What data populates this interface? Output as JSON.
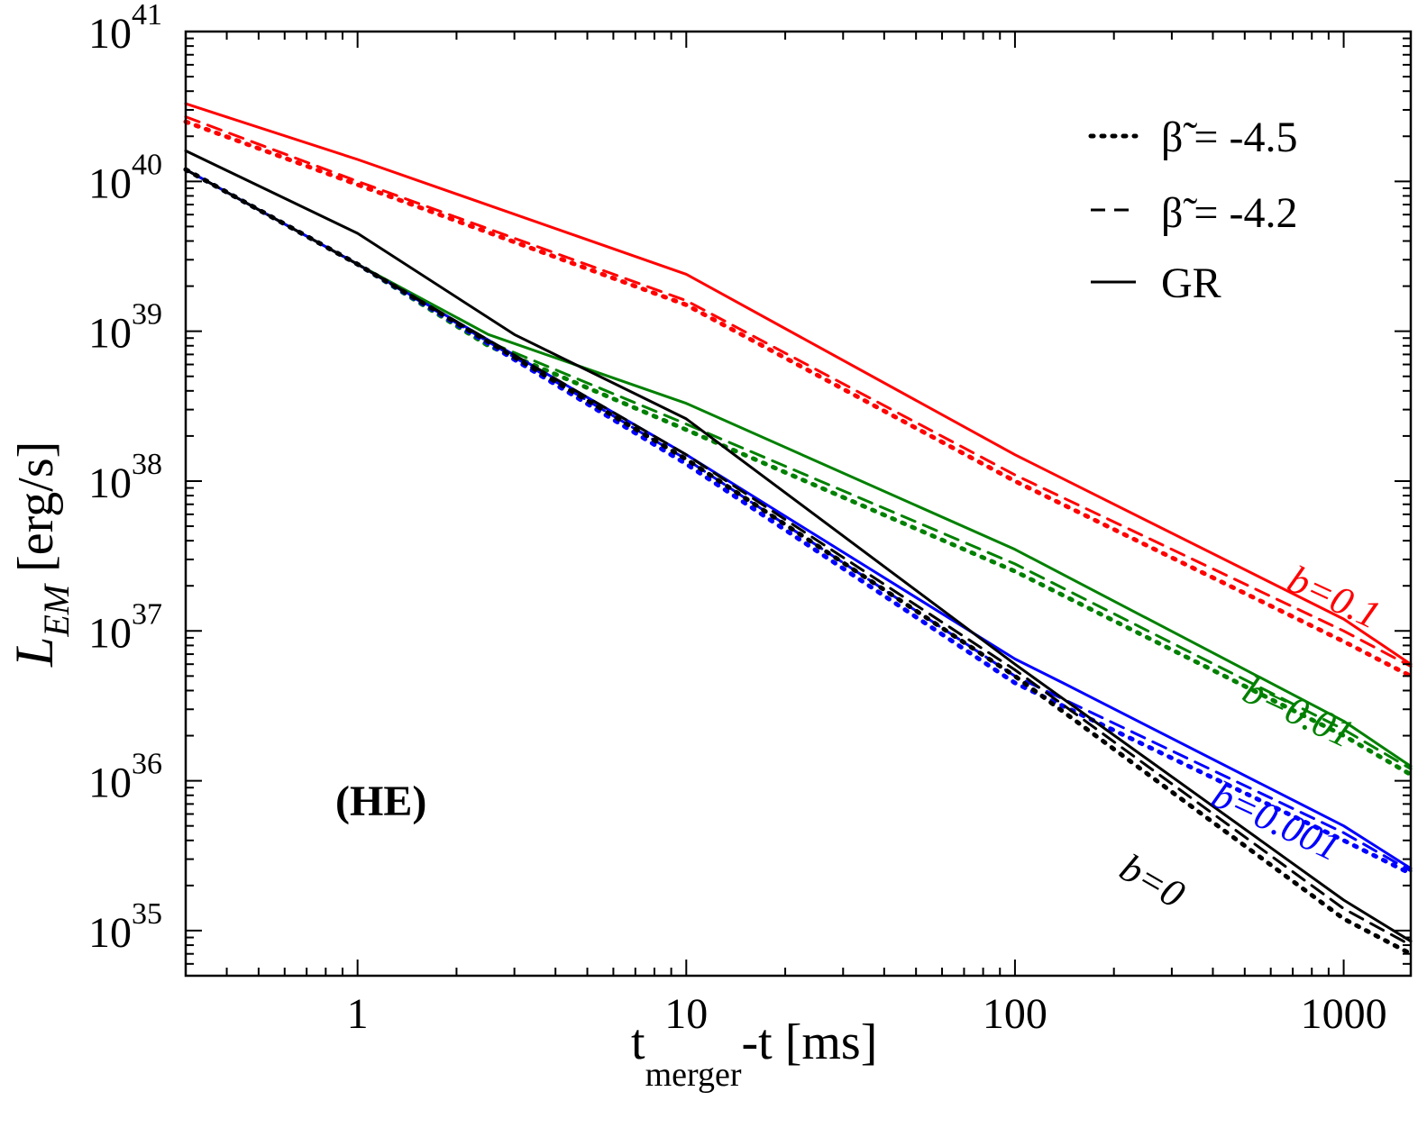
{
  "chart_data": {
    "type": "line",
    "title": "",
    "xlabel": "t_merger - t [ms]",
    "xlabel_main": "t",
    "xlabel_sub": "merger",
    "xlabel_rest": "-t  [ms]",
    "ylabel": "L_EM [erg/s]",
    "ylabel_main": "L",
    "ylabel_sub": "EM",
    "ylabel_rest": " [erg/s]",
    "xscale": "log",
    "yscale": "log",
    "xlim": [
      0.3,
      1600
    ],
    "ylim": [
      5e+34,
      1e+41
    ],
    "x_ticks": [
      {
        "value": 1,
        "label": "1"
      },
      {
        "value": 10,
        "label": "10"
      },
      {
        "value": 100,
        "label": "100"
      },
      {
        "value": 1000,
        "label": "1000"
      }
    ],
    "y_ticks": [
      {
        "value": 1e+35,
        "base": "10",
        "exp": "35"
      },
      {
        "value": 1e+36,
        "base": "10",
        "exp": "36"
      },
      {
        "value": 1e+37,
        "base": "10",
        "exp": "37"
      },
      {
        "value": 1e+38,
        "base": "10",
        "exp": "38"
      },
      {
        "value": 1e+39,
        "base": "10",
        "exp": "39"
      },
      {
        "value": 1e+40,
        "base": "10",
        "exp": "40"
      },
      {
        "value": 1e+41,
        "base": "10",
        "exp": "41"
      }
    ],
    "annotation": "(HE)",
    "legend": {
      "position": "top-right",
      "entries": [
        {
          "style": "dotted",
          "symbol": "β̃",
          "text": " = -4.5"
        },
        {
          "style": "dashed",
          "symbol": "β̃",
          "text": " = -4.2"
        },
        {
          "style": "solid",
          "symbol": "",
          "text": "GR"
        }
      ]
    },
    "series": [
      {
        "group": "b=0.1",
        "color": "#ff0000",
        "style": "solid",
        "x": [
          0.3,
          1,
          10,
          100,
          1000,
          1600
        ],
        "y": [
          3.3e+40,
          1.4e+40,
          2.4e+39,
          1.5e+38,
          1.2e+37,
          6e+36
        ]
      },
      {
        "group": "b=0.1",
        "color": "#ff0000",
        "style": "dashed",
        "x": [
          0.3,
          1,
          10,
          100,
          1000,
          1600
        ],
        "y": [
          2.7e+40,
          1e+40,
          1.6e+39,
          1.1e+38,
          1e+37,
          5.8e+36
        ]
      },
      {
        "group": "b=0.1",
        "color": "#ff0000",
        "style": "dotted",
        "x": [
          0.3,
          1,
          10,
          100,
          1000,
          1600
        ],
        "y": [
          2.5e+40,
          9.5e+39,
          1.5e+39,
          1e+38,
          8.5e+36,
          5e+36
        ]
      },
      {
        "group": "b=0.01",
        "color": "#008000",
        "style": "solid",
        "x": [
          0.3,
          1,
          2.5,
          10,
          100,
          1000,
          1600
        ],
        "y": [
          1.2e+40,
          2.8e+39,
          9.5e+38,
          3.3e+38,
          3.5e+37,
          2.5e+36,
          1.25e+36
        ]
      },
      {
        "group": "b=0.01",
        "color": "#008000",
        "style": "dashed",
        "x": [
          0.3,
          1,
          2.5,
          10,
          100,
          1000,
          1600
        ],
        "y": [
          1.2e+40,
          2.8e+39,
          8.5e+38,
          2.4e+38,
          2.8e+37,
          2.2e+36,
          1.2e+36
        ]
      },
      {
        "group": "b=0.01",
        "color": "#008000",
        "style": "dotted",
        "x": [
          0.3,
          1,
          2.5,
          10,
          100,
          1000,
          1600
        ],
        "y": [
          1.2e+40,
          2.8e+39,
          8e+38,
          2.2e+38,
          2.5e+37,
          2e+36,
          1.1e+36
        ]
      },
      {
        "group": "b=0.001",
        "color": "#0000ff",
        "style": "solid",
        "x": [
          0.3,
          1,
          10,
          100,
          140,
          1000,
          1600
        ],
        "y": [
          1.2e+40,
          2.8e+39,
          1.5e+38,
          6.5e+36,
          4.5e+36,
          5e+35,
          2.6e+35
        ]
      },
      {
        "group": "b=0.001",
        "color": "#0000ff",
        "style": "dashed",
        "x": [
          0.3,
          1,
          10,
          100,
          1000,
          1600
        ],
        "y": [
          1.2e+40,
          2.8e+39,
          1.4e+38,
          5e+36,
          4.5e+35,
          2.5e+35
        ]
      },
      {
        "group": "b=0.001",
        "color": "#0000ff",
        "style": "dotted",
        "x": [
          0.3,
          1,
          10,
          100,
          1000,
          1600
        ],
        "y": [
          1.2e+40,
          2.8e+39,
          1.3e+38,
          4.5e+36,
          4e+35,
          2.4e+35
        ]
      },
      {
        "group": "b=0",
        "color": "#000000",
        "style": "solid",
        "x": [
          0.3,
          1,
          3,
          10,
          100,
          1000,
          1600
        ],
        "y": [
          1.6e+40,
          4.5e+39,
          9.5e+38,
          2.6e+38,
          6e+36,
          1.6e+35,
          8.5e+34
        ]
      },
      {
        "group": "b=0",
        "color": "#000000",
        "style": "dashed",
        "x": [
          0.3,
          1,
          10,
          100,
          1000,
          1600
        ],
        "y": [
          1.2e+40,
          2.8e+39,
          1.5e+38,
          5.5e+36,
          1.4e+35,
          8e+34
        ]
      },
      {
        "group": "b=0",
        "color": "#000000",
        "style": "dotted",
        "x": [
          0.3,
          1,
          10,
          100,
          1000,
          1600
        ],
        "y": [
          1.2e+40,
          2.8e+39,
          1.4e+38,
          5e+36,
          1.2e+35,
          7e+34
        ]
      }
    ],
    "curve_labels": [
      {
        "text": "b=0.1",
        "color": "#ff0000",
        "x": 900,
        "y": 1.4e+37,
        "angle_deg": 25
      },
      {
        "text": "b=0.01",
        "color": "#008000",
        "x": 700,
        "y": 2.4e+36,
        "angle_deg": 25
      },
      {
        "text": "b=0.001",
        "color": "#0000ff",
        "x": 600,
        "y": 4.5e+35,
        "angle_deg": 25
      },
      {
        "text": "b=0",
        "color": "#000000",
        "x": 250,
        "y": 1.8e+35,
        "angle_deg": 30
      }
    ]
  }
}
